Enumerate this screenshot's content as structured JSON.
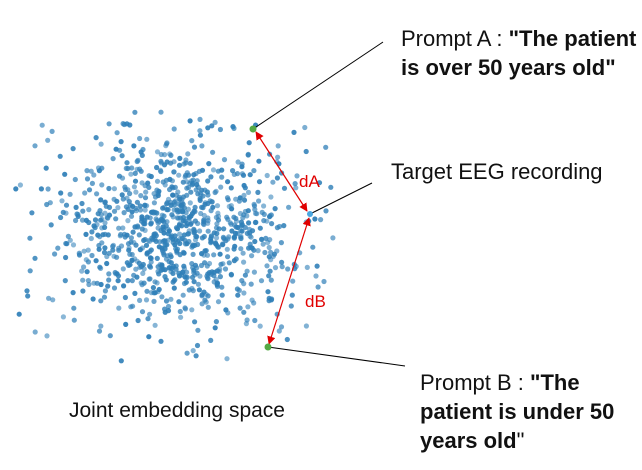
{
  "prompt_a": {
    "prefix": "Prompt A : ",
    "text": "\"The patient is over 50 years old\""
  },
  "target": {
    "text": "Target EEG recording"
  },
  "prompt_b": {
    "prefix": "Prompt B : ",
    "bold_text": "\"The patient is under 50 years old",
    "closing_quote": "\""
  },
  "caption": "Joint embedding space",
  "distances": {
    "a": "dA",
    "b": "dB"
  },
  "colors": {
    "embedding_point": "#2f7fb8",
    "prompt_point": "#55aa44",
    "target_point": "#4aa6e0",
    "distance_arrow": "#e00000",
    "leader_line": "#000000"
  }
}
